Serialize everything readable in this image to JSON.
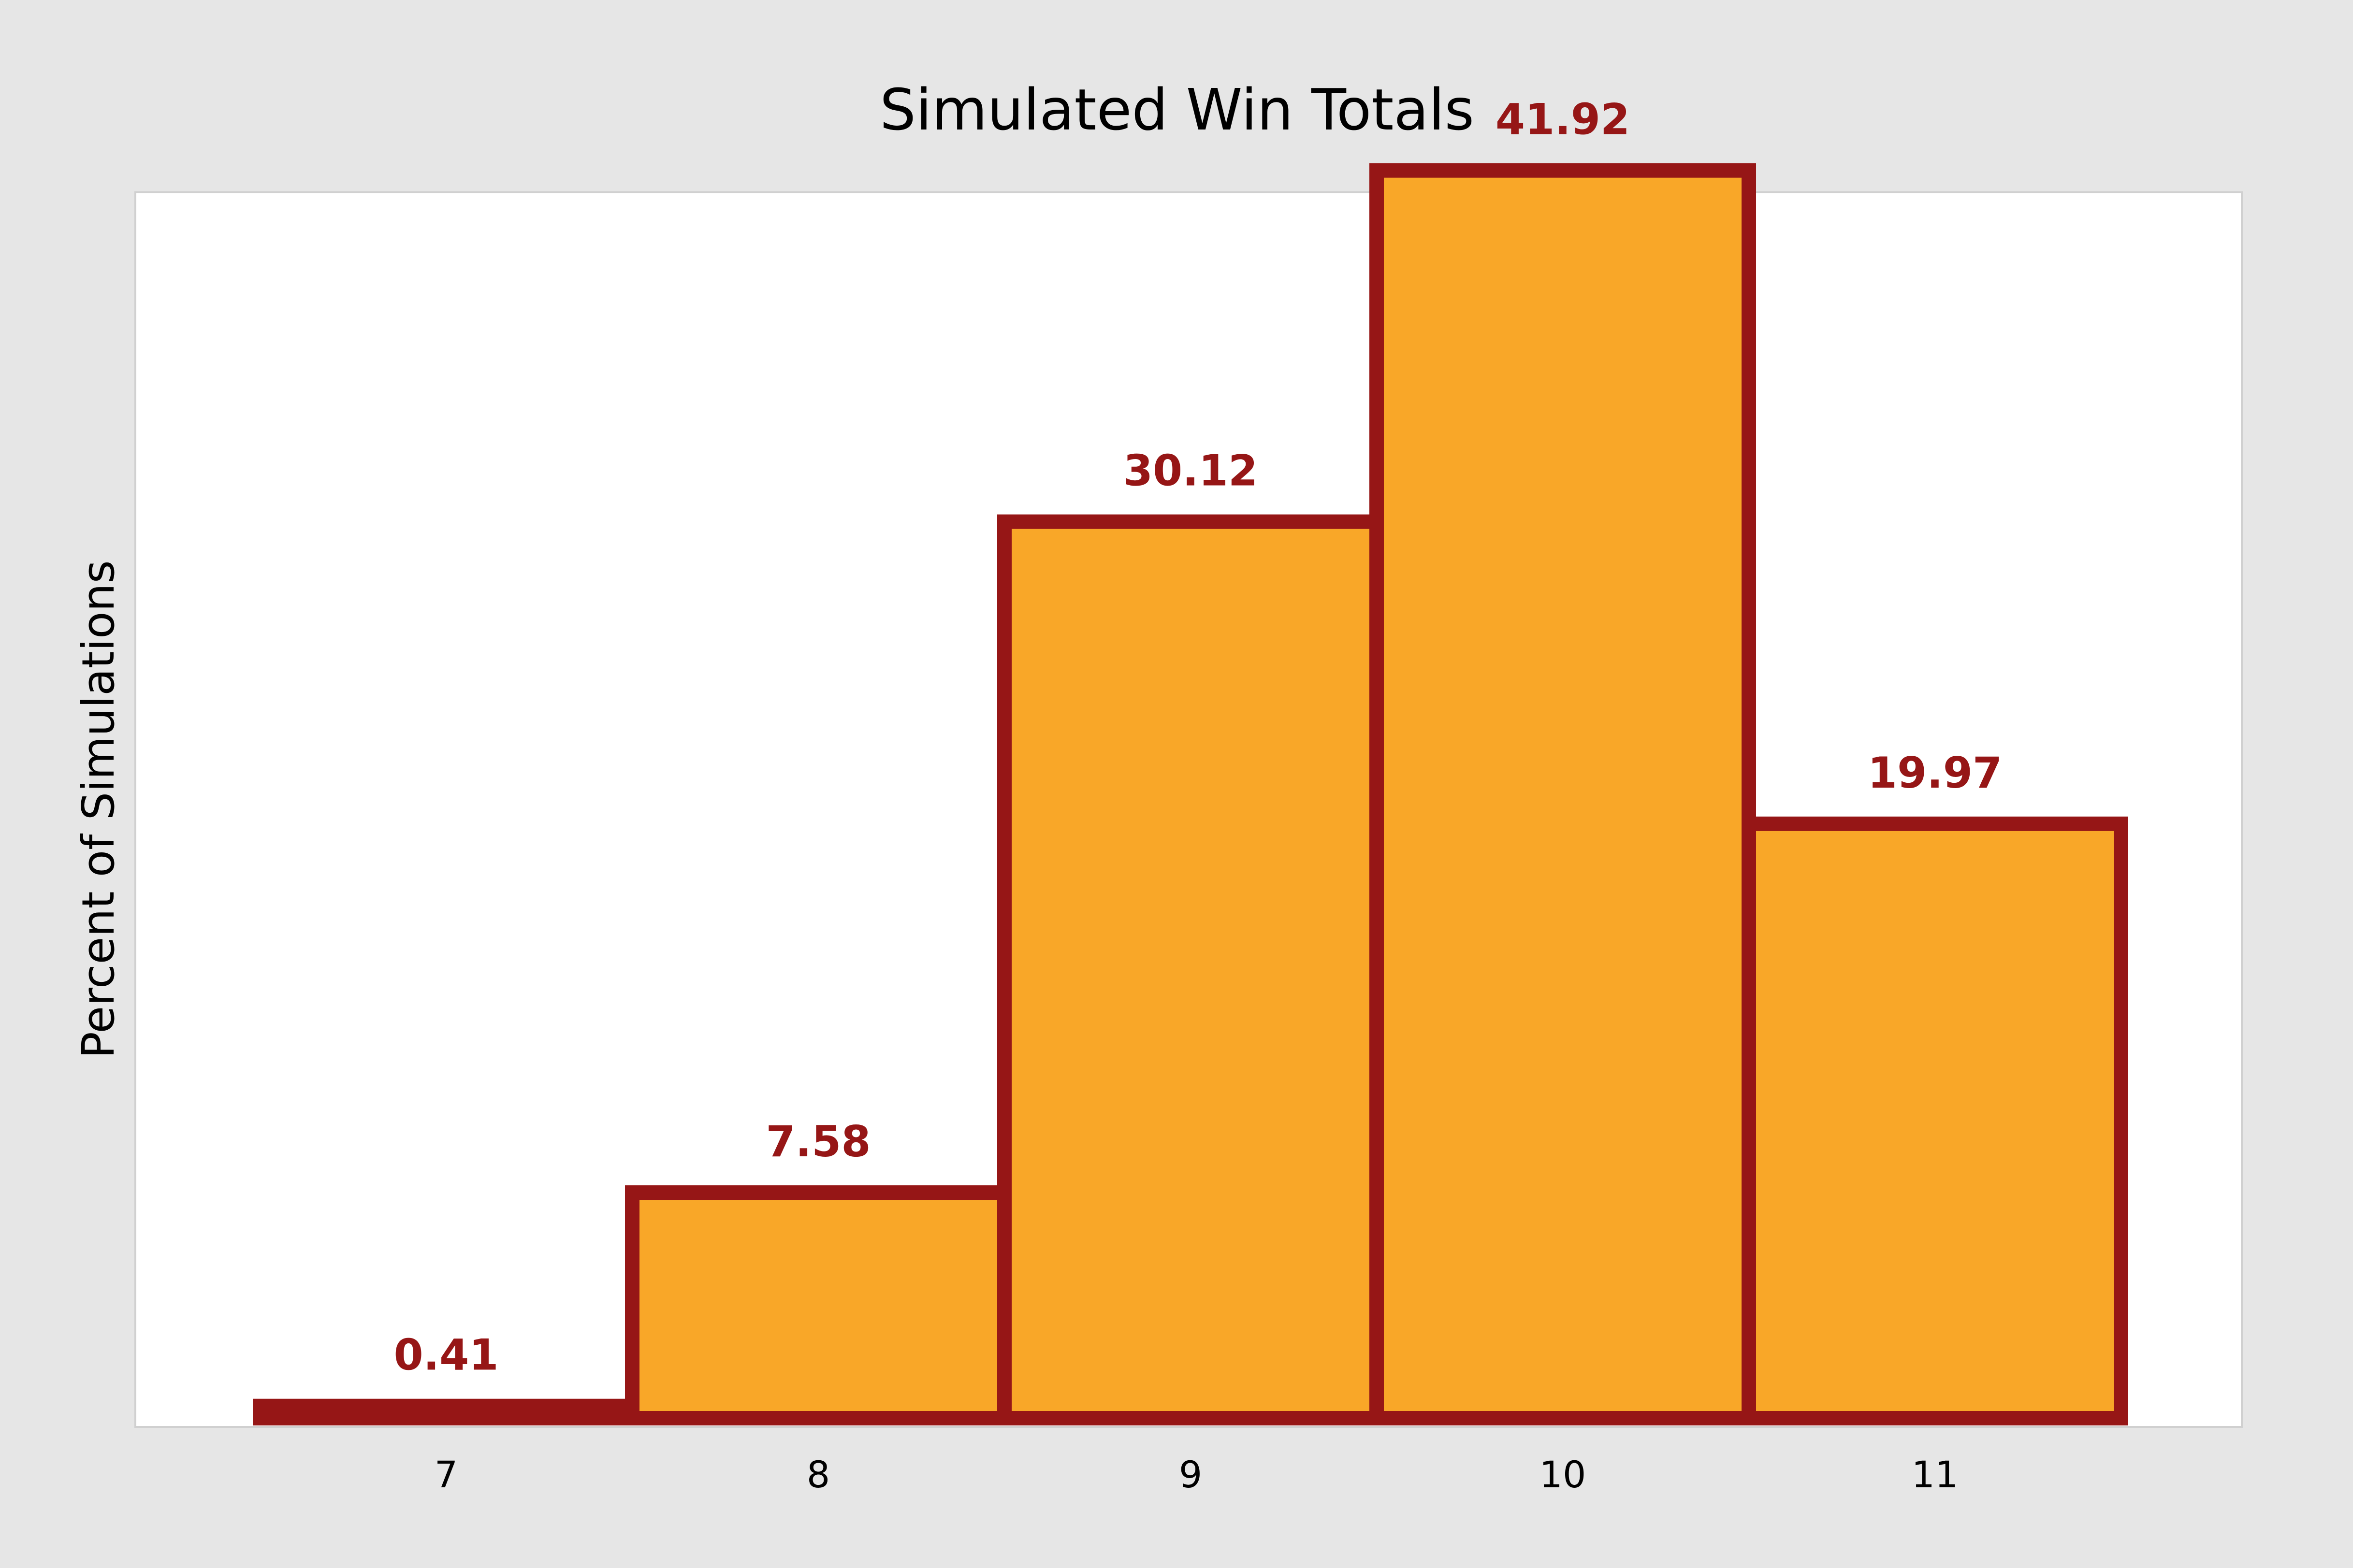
{
  "chart_data": {
    "type": "bar",
    "title": "Simulated Win Totals",
    "xlabel": "",
    "ylabel": "Percent of Simulations",
    "categories": [
      "7",
      "8",
      "9",
      "10",
      "11"
    ],
    "values": [
      0.41,
      7.58,
      30.12,
      41.92,
      19.97
    ],
    "data_labels": [
      "0.41",
      "7.58",
      "30.12",
      "41.92",
      "19.97"
    ],
    "ylim": [
      0,
      45
    ],
    "grid": false,
    "legend": "none",
    "bar_fill_color": "#f9a728",
    "bar_edge_color": "#961616",
    "label_color": "#961616",
    "plot_background": "#ffffff",
    "figure_background": "#e6e6e6"
  }
}
